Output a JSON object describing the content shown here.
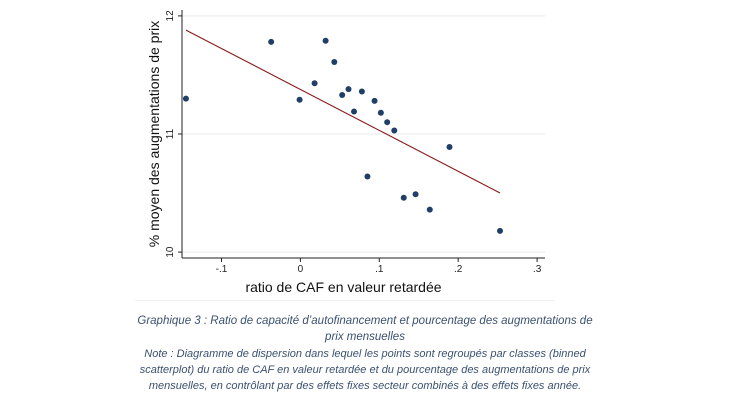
{
  "chart_data": {
    "type": "scatter",
    "xlabel": "ratio de CAF en valeur retardée",
    "ylabel": "% moyen des augmentations de prix",
    "xlim": [
      -0.15,
      0.31
    ],
    "ylim": [
      9.95,
      12.05
    ],
    "x_ticks": [
      -0.1,
      0,
      0.1,
      0.2,
      0.3
    ],
    "x_tick_labels": [
      "-.1",
      "0",
      ".1",
      ".2",
      ".3"
    ],
    "y_ticks": [
      10,
      11,
      12
    ],
    "y_tick_labels": [
      "10",
      "11",
      "12"
    ],
    "grid": "horizontal",
    "marker_color": "#1f3f66",
    "fit_color": "#8b1a1a",
    "points": [
      {
        "x": -0.145,
        "y": 11.3
      },
      {
        "x": -0.037,
        "y": 11.78
      },
      {
        "x": -0.001,
        "y": 11.29
      },
      {
        "x": 0.018,
        "y": 11.43
      },
      {
        "x": 0.032,
        "y": 11.79
      },
      {
        "x": 0.043,
        "y": 11.61
      },
      {
        "x": 0.053,
        "y": 11.33
      },
      {
        "x": 0.061,
        "y": 11.38
      },
      {
        "x": 0.068,
        "y": 11.19
      },
      {
        "x": 0.078,
        "y": 11.36
      },
      {
        "x": 0.085,
        "y": 10.64
      },
      {
        "x": 0.094,
        "y": 11.28
      },
      {
        "x": 0.102,
        "y": 11.18
      },
      {
        "x": 0.11,
        "y": 11.1
      },
      {
        "x": 0.119,
        "y": 11.03
      },
      {
        "x": 0.131,
        "y": 10.46
      },
      {
        "x": 0.146,
        "y": 10.49
      },
      {
        "x": 0.164,
        "y": 10.36
      },
      {
        "x": 0.189,
        "y": 10.89
      },
      {
        "x": 0.253,
        "y": 10.18
      }
    ],
    "fit_line": {
      "x": [
        -0.145,
        0.253
      ],
      "y": [
        11.88,
        10.5
      ]
    }
  },
  "caption": {
    "title": "Graphique 3 : Ratio de capacité d’autofinancement et pourcentage des augmentations de prix mensuelles",
    "note": "Note : Diagramme de dispersion dans lequel les points sont regroupés par classes (binned scatterplot) du ratio de CAF en valeur retardée et du pourcentage des augmentations de prix mensuelles, en contrôlant par des effets fixes secteur combinés à des effets fixes année."
  }
}
